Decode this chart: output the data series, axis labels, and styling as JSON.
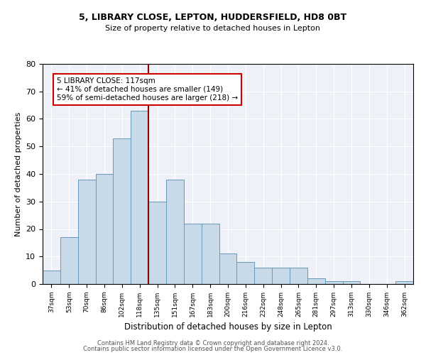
{
  "title1": "5, LIBRARY CLOSE, LEPTON, HUDDERSFIELD, HD8 0BT",
  "title2": "Size of property relative to detached houses in Lepton",
  "xlabel": "Distribution of detached houses by size in Lepton",
  "ylabel": "Number of detached properties",
  "categories": [
    "37sqm",
    "53sqm",
    "70sqm",
    "86sqm",
    "102sqm",
    "118sqm",
    "135sqm",
    "151sqm",
    "167sqm",
    "183sqm",
    "200sqm",
    "216sqm",
    "232sqm",
    "248sqm",
    "265sqm",
    "281sqm",
    "297sqm",
    "313sqm",
    "330sqm",
    "346sqm",
    "362sqm"
  ],
  "values": [
    5,
    17,
    38,
    40,
    53,
    63,
    30,
    38,
    22,
    22,
    11,
    8,
    6,
    6,
    6,
    2,
    1,
    1,
    0,
    0,
    1
  ],
  "bar_color": "#c8d9e8",
  "bar_edge_color": "#6699bb",
  "vline_color": "#8b0000",
  "vline_x_index": 5.5,
  "annotation_text": "5 LIBRARY CLOSE: 117sqm\n← 41% of detached houses are smaller (149)\n59% of semi-detached houses are larger (218) →",
  "annotation_box_color": "#ffffff",
  "annotation_box_edge": "#cc0000",
  "ylim": [
    0,
    80
  ],
  "yticks": [
    0,
    10,
    20,
    30,
    40,
    50,
    60,
    70,
    80
  ],
  "background_color": "#eef2f8",
  "footer1": "Contains HM Land Registry data © Crown copyright and database right 2024.",
  "footer2": "Contains public sector information licensed under the Open Government Licence v3.0."
}
